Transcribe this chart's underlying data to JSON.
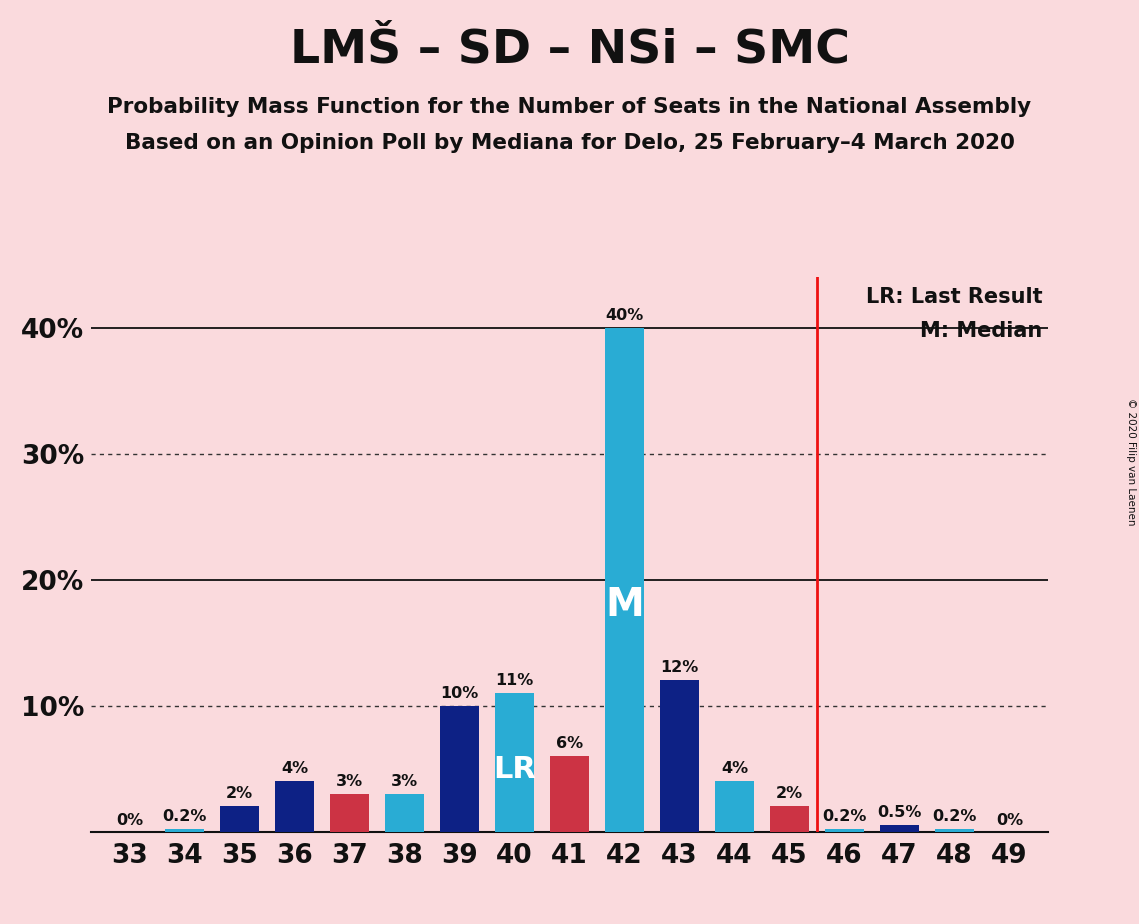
{
  "title": "LMŠ – SD – NSi – SMC",
  "subtitle1": "Probability Mass Function for the Number of Seats in the National Assembly",
  "subtitle2": "Based on an Opinion Poll by Mediana for Delo, 25 February–4 March 2020",
  "copyright": "© 2020 Filip van Laenen",
  "seats": [
    33,
    34,
    35,
    36,
    37,
    38,
    39,
    40,
    41,
    42,
    43,
    44,
    45,
    46,
    47,
    48,
    49
  ],
  "values": [
    0.0,
    0.2,
    2.0,
    4.0,
    3.0,
    3.0,
    10.0,
    11.0,
    6.0,
    40.0,
    12.0,
    4.0,
    2.0,
    0.2,
    0.5,
    0.2,
    0.0
  ],
  "bar_colors": [
    "#29acd4",
    "#29acd4",
    "#0d2185",
    "#0d2185",
    "#cc3344",
    "#29acd4",
    "#0d2185",
    "#29acd4",
    "#cc3344",
    "#29acd4",
    "#0d2185",
    "#29acd4",
    "#cc3344",
    "#29acd4",
    "#0d2185",
    "#29acd4",
    "#0d2185"
  ],
  "labels": [
    "0%",
    "0.2%",
    "2%",
    "4%",
    "3%",
    "3%",
    "10%",
    "11%",
    "6%",
    "40%",
    "12%",
    "4%",
    "2%",
    "0.2%",
    "0.5%",
    "0.2%",
    "0%"
  ],
  "lr_seat": 40,
  "median_seat": 42,
  "lr_line": 45.5,
  "ylim_max": 44,
  "background_color": "#fadadd",
  "navy_color": "#0d2185",
  "cyan_color": "#29acd4",
  "red_color": "#cc3344",
  "lr_line_color": "#ee1111",
  "text_color": "#111111",
  "bar_width": 0.72,
  "legend_lr": "LR: Last Result",
  "legend_m": "M: Median"
}
